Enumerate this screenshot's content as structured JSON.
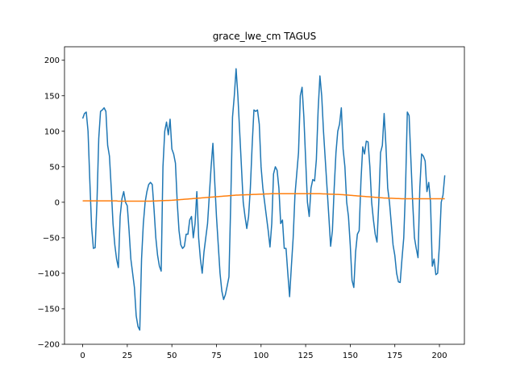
{
  "chart_data": {
    "type": "line",
    "title": "grace_lwe_cm TAGUS",
    "x": [
      0,
      1,
      2,
      3,
      4,
      5,
      6,
      7,
      8,
      9,
      10,
      11,
      12,
      13,
      14,
      15,
      16,
      17,
      18,
      19,
      20,
      21,
      22,
      23,
      24,
      25,
      26,
      27,
      28,
      29,
      30,
      31,
      32,
      33,
      34,
      35,
      36,
      37,
      38,
      39,
      40,
      41,
      42,
      43,
      44,
      45,
      46,
      47,
      48,
      49,
      50,
      51,
      52,
      53,
      54,
      55,
      56,
      57,
      58,
      59,
      60,
      61,
      62,
      63,
      64,
      65,
      66,
      67,
      68,
      69,
      70,
      71,
      72,
      73,
      74,
      75,
      76,
      77,
      78,
      79,
      80,
      81,
      82,
      83,
      84,
      85,
      86,
      87,
      88,
      89,
      90,
      91,
      92,
      93,
      94,
      95,
      96,
      97,
      98,
      99,
      100,
      101,
      102,
      103,
      104,
      105,
      106,
      107,
      108,
      109,
      110,
      111,
      112,
      113,
      114,
      115,
      116,
      117,
      118,
      119,
      120,
      121,
      122,
      123,
      124,
      125,
      126,
      127,
      128,
      129,
      130,
      131,
      132,
      133,
      134,
      135,
      136,
      137,
      138,
      139,
      140,
      141,
      142,
      143,
      144,
      145,
      146,
      147,
      148,
      149,
      150,
      151,
      152,
      153,
      154,
      155,
      156,
      157,
      158,
      159,
      160,
      161,
      162,
      163,
      164,
      165,
      166,
      167,
      168,
      169,
      170,
      171,
      172,
      173,
      174,
      175,
      176,
      177,
      178,
      179,
      180,
      181,
      182,
      183,
      184,
      185,
      186,
      187,
      188,
      189,
      190,
      191,
      192,
      193,
      194,
      195,
      196,
      197,
      198,
      199,
      200,
      201,
      202,
      203
    ],
    "series": [
      {
        "color": "#1f77b4",
        "values": [
          118,
          125,
          127,
          100,
          30,
          -35,
          -65,
          -64,
          0,
          90,
          128,
          130,
          133,
          128,
          80,
          65,
          20,
          -30,
          -60,
          -80,
          -92,
          -20,
          5,
          15,
          0,
          -5,
          -40,
          -80,
          -100,
          -120,
          -160,
          -175,
          -180,
          -80,
          -30,
          0,
          15,
          25,
          28,
          25,
          -10,
          -50,
          -75,
          -90,
          -97,
          50,
          100,
          113,
          95,
          117,
          75,
          68,
          55,
          0,
          -40,
          -60,
          -65,
          -62,
          -45,
          -45,
          -25,
          -20,
          -50,
          -30,
          15,
          -50,
          -80,
          -100,
          -70,
          -50,
          -30,
          10,
          50,
          83,
          30,
          -20,
          -60,
          -100,
          -125,
          -137,
          -130,
          -118,
          -105,
          0,
          120,
          150,
          188,
          150,
          100,
          50,
          0,
          -20,
          -37,
          -20,
          20,
          80,
          130,
          128,
          130,
          110,
          50,
          20,
          0,
          -20,
          -40,
          -63,
          -30,
          40,
          50,
          45,
          20,
          -30,
          -25,
          -65,
          -65,
          -100,
          -133,
          -90,
          -50,
          10,
          40,
          70,
          150,
          162,
          120,
          60,
          0,
          -20,
          20,
          32,
          30,
          60,
          130,
          178,
          150,
          100,
          60,
          20,
          -20,
          -62,
          -40,
          20,
          70,
          100,
          110,
          133,
          75,
          50,
          0,
          -20,
          -60,
          -110,
          -120,
          -70,
          -45,
          -40,
          30,
          78,
          68,
          86,
          85,
          50,
          0,
          -25,
          -45,
          -56,
          0,
          70,
          80,
          125,
          80,
          20,
          0,
          -30,
          -60,
          -75,
          -100,
          -112,
          -113,
          -80,
          -50,
          20,
          127,
          122,
          60,
          0,
          -50,
          -65,
          -78,
          20,
          68,
          65,
          58,
          15,
          28,
          0,
          -90,
          -80,
          -102,
          -100,
          -60,
          0,
          10,
          38
        ]
      },
      {
        "color": "#ff7f0e",
        "values": [
          2,
          2,
          2,
          2,
          2,
          2,
          2,
          2,
          2,
          2,
          2,
          2,
          2,
          2,
          2,
          2,
          2,
          2,
          2,
          2,
          1.5,
          1.5,
          1.5,
          1.5,
          1.5,
          1.5,
          1.5,
          1.5,
          1.5,
          1.5,
          1.5,
          1.5,
          1.5,
          1.5,
          1.5,
          1.5,
          1.5,
          1.6,
          1.6,
          1.7,
          1.8,
          1.9,
          2,
          2.1,
          2.2,
          2.3,
          2.4,
          2.5,
          2.6,
          2.7,
          2.8,
          3,
          3.2,
          3.4,
          3.6,
          3.8,
          4,
          4.2,
          4.4,
          4.6,
          4.8,
          5,
          5.2,
          5.4,
          5.6,
          5.8,
          6,
          6.2,
          6.4,
          6.6,
          6.8,
          7,
          7.2,
          7.4,
          7.6,
          7.8,
          8,
          8.2,
          8.4,
          8.6,
          8.8,
          9,
          9.2,
          9.4,
          9.6,
          9.8,
          10,
          10.1,
          10.2,
          10.3,
          10.4,
          10.5,
          10.6,
          10.7,
          10.8,
          10.9,
          11,
          11.1,
          11.2,
          11.3,
          11.4,
          11.5,
          11.6,
          11.7,
          11.8,
          11.9,
          12,
          12,
          12,
          12,
          12,
          12,
          12,
          12,
          12,
          12,
          12,
          12,
          12,
          12,
          12,
          12,
          12,
          12,
          12,
          12,
          12,
          12,
          12,
          12,
          12,
          12,
          12,
          12,
          11.9,
          11.8,
          11.7,
          11.6,
          11.5,
          11.4,
          11.3,
          11.2,
          11.1,
          11,
          10.9,
          10.8,
          10.6,
          10.4,
          10.2,
          10,
          9.8,
          9.6,
          9.4,
          9.2,
          9,
          8.8,
          8.6,
          8.4,
          8.2,
          8,
          7.8,
          7.6,
          7.4,
          7.2,
          7,
          6.8,
          6.6,
          6.4,
          6.2,
          6,
          5.9,
          5.8,
          5.7,
          5.6,
          5.5,
          5.4,
          5.3,
          5.2,
          5.1,
          5,
          5,
          5,
          5,
          5,
          5,
          5,
          5,
          5,
          5,
          5,
          5,
          5,
          5,
          5,
          5,
          5,
          5,
          5,
          5,
          5,
          5,
          5,
          5,
          5
        ]
      }
    ],
    "xlim": [
      -10.2,
      214
    ],
    "xticks": [
      0,
      25,
      50,
      75,
      100,
      125,
      150,
      175,
      200
    ],
    "ylim": [
      -200,
      219
    ],
    "yticks": [
      {
        "value": -200,
        "label": "−200"
      },
      {
        "value": -150,
        "label": "−150"
      },
      {
        "value": -100,
        "label": "−100"
      },
      {
        "value": -50,
        "label": "−50"
      },
      0,
      50,
      100,
      150,
      200
    ],
    "grid": false
  }
}
